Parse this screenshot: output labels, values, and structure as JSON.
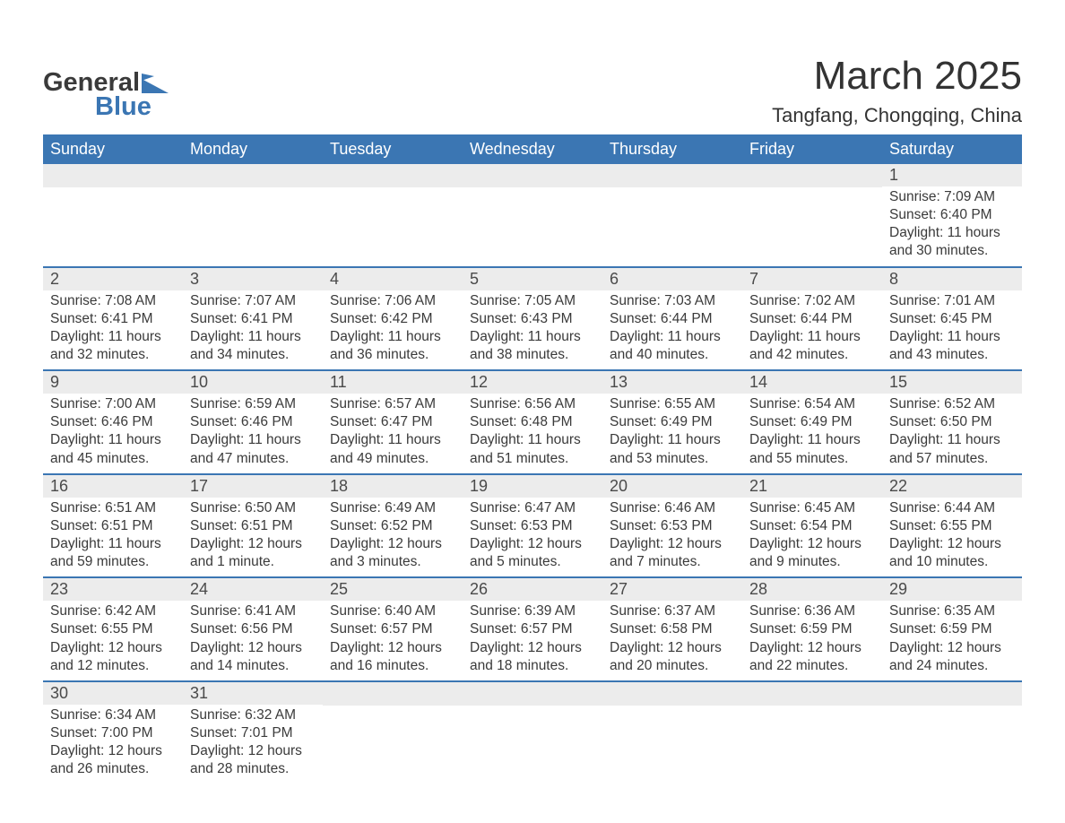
{
  "brand": {
    "text1": "General",
    "text2": "Blue",
    "accent": "#3b76b3"
  },
  "title": "March 2025",
  "location": "Tangfang, Chongqing, China",
  "colors": {
    "header_bg": "#3b76b3",
    "header_fg": "#ffffff",
    "daynum_bg": "#ececec",
    "row_divider": "#3b76b3",
    "text": "#3a3a3a"
  },
  "typography": {
    "title_fontsize": 44,
    "location_fontsize": 22,
    "dayheader_fontsize": 18,
    "daynum_fontsize": 18,
    "body_fontsize": 15.5
  },
  "calendar": {
    "type": "table",
    "columns": [
      "Sunday",
      "Monday",
      "Tuesday",
      "Wednesday",
      "Thursday",
      "Friday",
      "Saturday"
    ],
    "weeks": [
      [
        null,
        null,
        null,
        null,
        null,
        null,
        {
          "n": "1",
          "sunrise": "Sunrise: 7:09 AM",
          "sunset": "Sunset: 6:40 PM",
          "d1": "Daylight: 11 hours",
          "d2": "and 30 minutes."
        }
      ],
      [
        {
          "n": "2",
          "sunrise": "Sunrise: 7:08 AM",
          "sunset": "Sunset: 6:41 PM",
          "d1": "Daylight: 11 hours",
          "d2": "and 32 minutes."
        },
        {
          "n": "3",
          "sunrise": "Sunrise: 7:07 AM",
          "sunset": "Sunset: 6:41 PM",
          "d1": "Daylight: 11 hours",
          "d2": "and 34 minutes."
        },
        {
          "n": "4",
          "sunrise": "Sunrise: 7:06 AM",
          "sunset": "Sunset: 6:42 PM",
          "d1": "Daylight: 11 hours",
          "d2": "and 36 minutes."
        },
        {
          "n": "5",
          "sunrise": "Sunrise: 7:05 AM",
          "sunset": "Sunset: 6:43 PM",
          "d1": "Daylight: 11 hours",
          "d2": "and 38 minutes."
        },
        {
          "n": "6",
          "sunrise": "Sunrise: 7:03 AM",
          "sunset": "Sunset: 6:44 PM",
          "d1": "Daylight: 11 hours",
          "d2": "and 40 minutes."
        },
        {
          "n": "7",
          "sunrise": "Sunrise: 7:02 AM",
          "sunset": "Sunset: 6:44 PM",
          "d1": "Daylight: 11 hours",
          "d2": "and 42 minutes."
        },
        {
          "n": "8",
          "sunrise": "Sunrise: 7:01 AM",
          "sunset": "Sunset: 6:45 PM",
          "d1": "Daylight: 11 hours",
          "d2": "and 43 minutes."
        }
      ],
      [
        {
          "n": "9",
          "sunrise": "Sunrise: 7:00 AM",
          "sunset": "Sunset: 6:46 PM",
          "d1": "Daylight: 11 hours",
          "d2": "and 45 minutes."
        },
        {
          "n": "10",
          "sunrise": "Sunrise: 6:59 AM",
          "sunset": "Sunset: 6:46 PM",
          "d1": "Daylight: 11 hours",
          "d2": "and 47 minutes."
        },
        {
          "n": "11",
          "sunrise": "Sunrise: 6:57 AM",
          "sunset": "Sunset: 6:47 PM",
          "d1": "Daylight: 11 hours",
          "d2": "and 49 minutes."
        },
        {
          "n": "12",
          "sunrise": "Sunrise: 6:56 AM",
          "sunset": "Sunset: 6:48 PM",
          "d1": "Daylight: 11 hours",
          "d2": "and 51 minutes."
        },
        {
          "n": "13",
          "sunrise": "Sunrise: 6:55 AM",
          "sunset": "Sunset: 6:49 PM",
          "d1": "Daylight: 11 hours",
          "d2": "and 53 minutes."
        },
        {
          "n": "14",
          "sunrise": "Sunrise: 6:54 AM",
          "sunset": "Sunset: 6:49 PM",
          "d1": "Daylight: 11 hours",
          "d2": "and 55 minutes."
        },
        {
          "n": "15",
          "sunrise": "Sunrise: 6:52 AM",
          "sunset": "Sunset: 6:50 PM",
          "d1": "Daylight: 11 hours",
          "d2": "and 57 minutes."
        }
      ],
      [
        {
          "n": "16",
          "sunrise": "Sunrise: 6:51 AM",
          "sunset": "Sunset: 6:51 PM",
          "d1": "Daylight: 11 hours",
          "d2": "and 59 minutes."
        },
        {
          "n": "17",
          "sunrise": "Sunrise: 6:50 AM",
          "sunset": "Sunset: 6:51 PM",
          "d1": "Daylight: 12 hours",
          "d2": "and 1 minute."
        },
        {
          "n": "18",
          "sunrise": "Sunrise: 6:49 AM",
          "sunset": "Sunset: 6:52 PM",
          "d1": "Daylight: 12 hours",
          "d2": "and 3 minutes."
        },
        {
          "n": "19",
          "sunrise": "Sunrise: 6:47 AM",
          "sunset": "Sunset: 6:53 PM",
          "d1": "Daylight: 12 hours",
          "d2": "and 5 minutes."
        },
        {
          "n": "20",
          "sunrise": "Sunrise: 6:46 AM",
          "sunset": "Sunset: 6:53 PM",
          "d1": "Daylight: 12 hours",
          "d2": "and 7 minutes."
        },
        {
          "n": "21",
          "sunrise": "Sunrise: 6:45 AM",
          "sunset": "Sunset: 6:54 PM",
          "d1": "Daylight: 12 hours",
          "d2": "and 9 minutes."
        },
        {
          "n": "22",
          "sunrise": "Sunrise: 6:44 AM",
          "sunset": "Sunset: 6:55 PM",
          "d1": "Daylight: 12 hours",
          "d2": "and 10 minutes."
        }
      ],
      [
        {
          "n": "23",
          "sunrise": "Sunrise: 6:42 AM",
          "sunset": "Sunset: 6:55 PM",
          "d1": "Daylight: 12 hours",
          "d2": "and 12 minutes."
        },
        {
          "n": "24",
          "sunrise": "Sunrise: 6:41 AM",
          "sunset": "Sunset: 6:56 PM",
          "d1": "Daylight: 12 hours",
          "d2": "and 14 minutes."
        },
        {
          "n": "25",
          "sunrise": "Sunrise: 6:40 AM",
          "sunset": "Sunset: 6:57 PM",
          "d1": "Daylight: 12 hours",
          "d2": "and 16 minutes."
        },
        {
          "n": "26",
          "sunrise": "Sunrise: 6:39 AM",
          "sunset": "Sunset: 6:57 PM",
          "d1": "Daylight: 12 hours",
          "d2": "and 18 minutes."
        },
        {
          "n": "27",
          "sunrise": "Sunrise: 6:37 AM",
          "sunset": "Sunset: 6:58 PM",
          "d1": "Daylight: 12 hours",
          "d2": "and 20 minutes."
        },
        {
          "n": "28",
          "sunrise": "Sunrise: 6:36 AM",
          "sunset": "Sunset: 6:59 PM",
          "d1": "Daylight: 12 hours",
          "d2": "and 22 minutes."
        },
        {
          "n": "29",
          "sunrise": "Sunrise: 6:35 AM",
          "sunset": "Sunset: 6:59 PM",
          "d1": "Daylight: 12 hours",
          "d2": "and 24 minutes."
        }
      ],
      [
        {
          "n": "30",
          "sunrise": "Sunrise: 6:34 AM",
          "sunset": "Sunset: 7:00 PM",
          "d1": "Daylight: 12 hours",
          "d2": "and 26 minutes."
        },
        {
          "n": "31",
          "sunrise": "Sunrise: 6:32 AM",
          "sunset": "Sunset: 7:01 PM",
          "d1": "Daylight: 12 hours",
          "d2": "and 28 minutes."
        },
        null,
        null,
        null,
        null,
        null
      ]
    ]
  }
}
